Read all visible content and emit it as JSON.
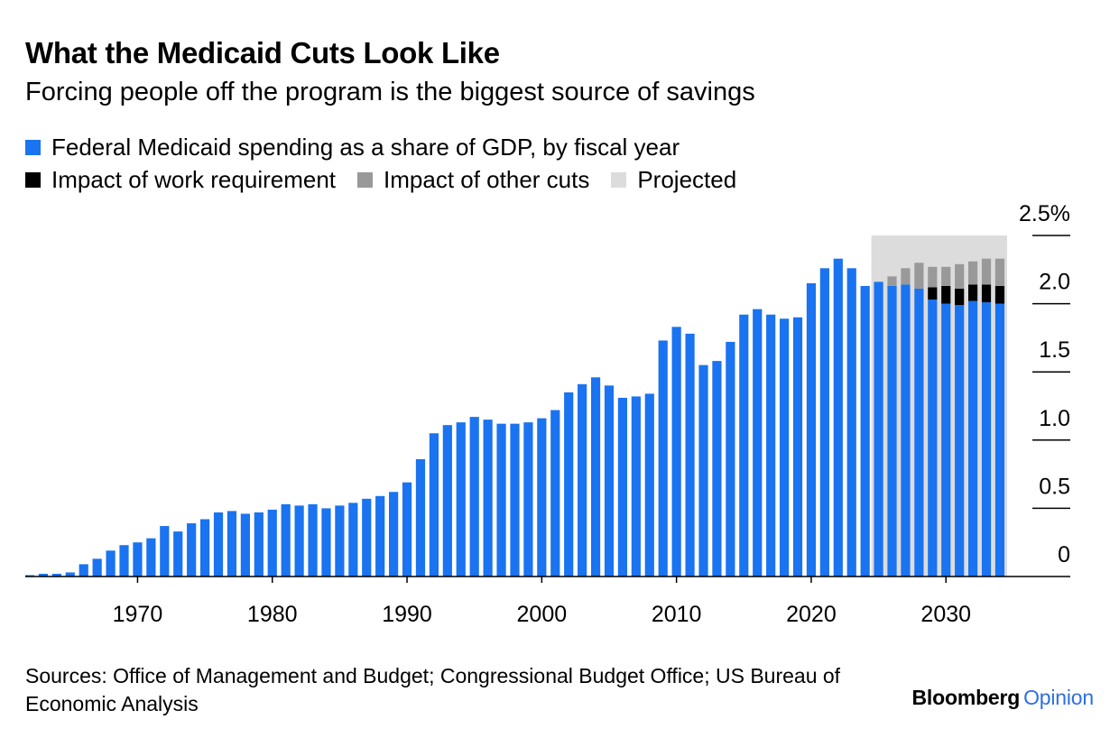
{
  "header": {
    "title": "What the Medicaid Cuts Look Like",
    "subtitle": "Forcing people off the program is the biggest source of savings"
  },
  "legend": {
    "federal": "Federal Medicaid spending as a share of GDP, by fiscal year",
    "work": "Impact of work requirement",
    "other": "Impact of other cuts",
    "projected": "Projected"
  },
  "colors": {
    "federal": "#1a73f0",
    "work": "#000000",
    "other": "#999999",
    "projected": "#dcdcdc"
  },
  "footer": {
    "source": "Sources: Office of Management and Budget; Congressional Budget Office; US Bureau of Economic Analysis",
    "brand_main": "Bloomberg",
    "brand_sub": "Opinion"
  },
  "chart_data": {
    "type": "bar",
    "stacked": true,
    "x": [
      1962,
      1963,
      1964,
      1965,
      1966,
      1967,
      1968,
      1969,
      1970,
      1971,
      1972,
      1973,
      1974,
      1975,
      1976,
      1977,
      1978,
      1979,
      1980,
      1981,
      1982,
      1983,
      1984,
      1985,
      1986,
      1987,
      1988,
      1989,
      1990,
      1991,
      1992,
      1993,
      1994,
      1995,
      1996,
      1997,
      1998,
      1999,
      2000,
      2001,
      2002,
      2003,
      2004,
      2005,
      2006,
      2007,
      2008,
      2009,
      2010,
      2011,
      2012,
      2013,
      2014,
      2015,
      2016,
      2017,
      2018,
      2019,
      2020,
      2021,
      2022,
      2023,
      2024,
      2025,
      2026,
      2027,
      2028,
      2029,
      2030,
      2031,
      2032,
      2033,
      2034
    ],
    "series": [
      {
        "name": "Federal Medicaid spending as a share of GDP, by fiscal year",
        "key": "federal",
        "values": [
          0.01,
          0.02,
          0.02,
          0.03,
          0.09,
          0.13,
          0.19,
          0.23,
          0.25,
          0.28,
          0.37,
          0.33,
          0.39,
          0.42,
          0.47,
          0.48,
          0.46,
          0.47,
          0.49,
          0.53,
          0.52,
          0.53,
          0.5,
          0.52,
          0.54,
          0.57,
          0.59,
          0.62,
          0.69,
          0.86,
          1.05,
          1.11,
          1.13,
          1.17,
          1.15,
          1.12,
          1.12,
          1.13,
          1.16,
          1.22,
          1.35,
          1.41,
          1.46,
          1.4,
          1.31,
          1.32,
          1.34,
          1.73,
          1.83,
          1.78,
          1.55,
          1.58,
          1.72,
          1.92,
          1.96,
          1.92,
          1.89,
          1.9,
          2.15,
          2.26,
          2.33,
          2.26,
          2.13,
          2.16,
          2.13,
          2.14,
          2.11,
          2.03,
          2.0,
          1.99,
          2.02,
          2.01,
          2.0
        ]
      },
      {
        "name": "Impact of work requirement",
        "key": "work",
        "values": [
          0,
          0,
          0,
          0,
          0,
          0,
          0,
          0,
          0,
          0,
          0,
          0,
          0,
          0,
          0,
          0,
          0,
          0,
          0,
          0,
          0,
          0,
          0,
          0,
          0,
          0,
          0,
          0,
          0,
          0,
          0,
          0,
          0,
          0,
          0,
          0,
          0,
          0,
          0,
          0,
          0,
          0,
          0,
          0,
          0,
          0,
          0,
          0,
          0,
          0,
          0,
          0,
          0,
          0,
          0,
          0,
          0,
          0,
          0,
          0,
          0,
          0,
          0,
          0,
          0,
          0,
          0,
          0.09,
          0.13,
          0.12,
          0.12,
          0.13,
          0.13
        ]
      },
      {
        "name": "Impact of other cuts",
        "key": "other",
        "values": [
          0,
          0,
          0,
          0,
          0,
          0,
          0,
          0,
          0,
          0,
          0,
          0,
          0,
          0,
          0,
          0,
          0,
          0,
          0,
          0,
          0,
          0,
          0,
          0,
          0,
          0,
          0,
          0,
          0,
          0,
          0,
          0,
          0,
          0,
          0,
          0,
          0,
          0,
          0,
          0,
          0,
          0,
          0,
          0,
          0,
          0,
          0,
          0,
          0,
          0,
          0,
          0,
          0,
          0,
          0,
          0,
          0,
          0,
          0,
          0,
          0,
          0,
          0,
          0,
          0.07,
          0.12,
          0.19,
          0.15,
          0.14,
          0.18,
          0.17,
          0.19,
          0.2
        ]
      }
    ],
    "projected_range": [
      2025,
      2034
    ],
    "projected_top": 2.5,
    "x_ticks": [
      1970,
      1980,
      1990,
      2000,
      2010,
      2020,
      2030
    ],
    "x_tick_labels": [
      "1970",
      "1980",
      "1990",
      "2000",
      "2010",
      "2020",
      "2030"
    ],
    "y_ticks": [
      0,
      0.5,
      1.0,
      1.5,
      2.0,
      2.5
    ],
    "y_tick_labels": [
      "0",
      "0.5",
      "1.0",
      "1.5",
      "2.0",
      "2.5%"
    ],
    "ylim": [
      0,
      2.5
    ],
    "y_axis_side": "right",
    "legend_position": "top-left"
  }
}
